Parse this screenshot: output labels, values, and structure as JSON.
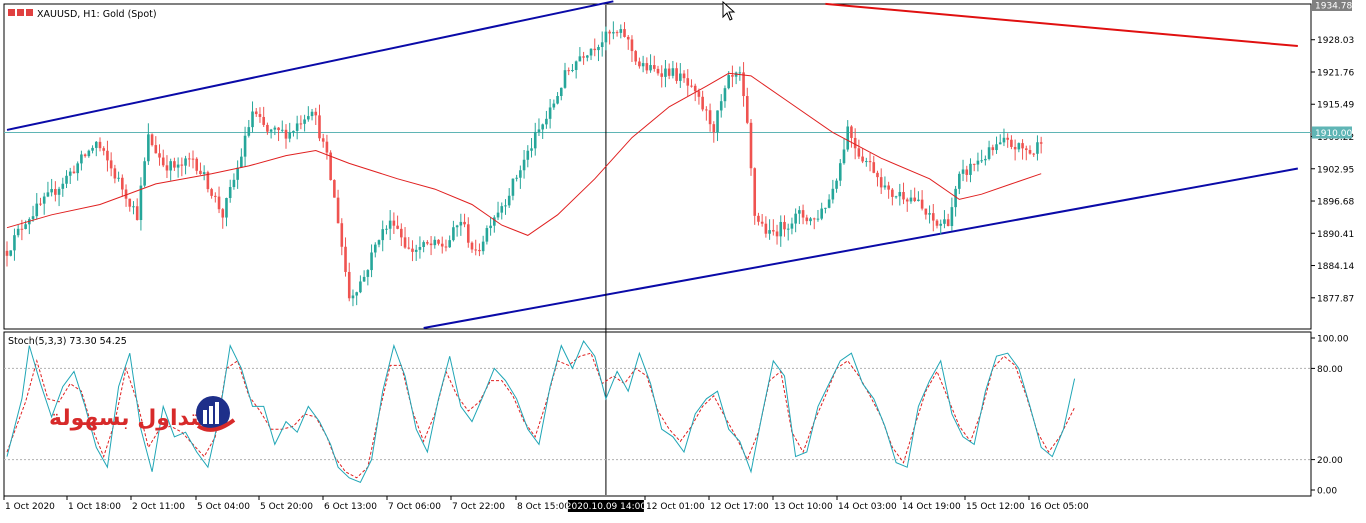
{
  "header": {
    "symbol_title": "XAUUSD, H1:  Gold (Spot)",
    "stoch_title": "Stoch(5,3,3) 73.30 54.25"
  },
  "logo": {
    "text": "التداول بسهولة"
  },
  "colors": {
    "bull": "#26a69a",
    "bear": "#ef5350",
    "ma": "#e02020",
    "channel": "#0a0aa8",
    "resistance": "#e01010",
    "hline": "#5fb5b5",
    "stoch_main": "#20a6b6",
    "stoch_signal": "#e02020",
    "crosshair": "#000000"
  },
  "chart_data": [
    {
      "type": "candlestick",
      "symbol": "XAUUSD",
      "timeframe": "H1",
      "ylim": [
        1872.0,
        1934.78
      ],
      "y_ticks": [
        "1934.78",
        "1928.03",
        "1921.76",
        "1915.49",
        "1909.22",
        "1902.95",
        "1896.68",
        "1890.41",
        "1884.14",
        "1877.87"
      ],
      "price_tag": "1910.00",
      "x_ticks": [
        "1 Oct 2020",
        "1 Oct 18:00",
        "2 Oct 11:00",
        "5 Oct 04:00",
        "5 Oct 20:00",
        "6 Oct 13:00",
        "7 Oct 06:00",
        "7 Oct 22:00",
        "8 Oct 15:00",
        "12 Oct 01:00",
        "12 Oct 17:00",
        "13 Oct 10:00",
        "14 Oct 03:00",
        "14 Oct 19:00",
        "15 Oct 12:00",
        "16 Oct 05:00"
      ],
      "crosshair_label": "2020.10.09 14:00",
      "anchors": [
        [
          0,
          1887
        ],
        [
          5,
          1893
        ],
        [
          12,
          1898
        ],
        [
          18,
          1903
        ],
        [
          24,
          1908
        ],
        [
          28,
          1903
        ],
        [
          32,
          1898
        ],
        [
          35,
          1894
        ],
        [
          38,
          1909
        ],
        [
          42,
          1904
        ],
        [
          46,
          1903
        ],
        [
          50,
          1905
        ],
        [
          54,
          1900
        ],
        [
          58,
          1894
        ],
        [
          62,
          1903
        ],
        [
          66,
          1914
        ],
        [
          70,
          1910
        ],
        [
          76,
          1910
        ],
        [
          82,
          1915
        ],
        [
          86,
          1905
        ],
        [
          89,
          1893
        ],
        [
          92,
          1878
        ],
        [
          96,
          1882
        ],
        [
          100,
          1890
        ],
        [
          104,
          1893
        ],
        [
          108,
          1887
        ],
        [
          113,
          1888
        ],
        [
          118,
          1888
        ],
        [
          122,
          1893
        ],
        [
          126,
          1886
        ],
        [
          130,
          1893
        ],
        [
          134,
          1897
        ],
        [
          138,
          1903
        ],
        [
          142,
          1909
        ],
        [
          146,
          1914
        ],
        [
          150,
          1921
        ],
        [
          154,
          1925
        ],
        [
          158,
          1927
        ],
        [
          162,
          1929
        ],
        [
          166,
          1929
        ],
        [
          170,
          1923
        ],
        [
          174,
          1922
        ],
        [
          178,
          1922
        ],
        [
          182,
          1920
        ],
        [
          186,
          1916
        ],
        [
          190,
          1911
        ],
        [
          194,
          1920
        ],
        [
          197,
          1921
        ],
        [
          199,
          1911
        ],
        [
          201,
          1894
        ],
        [
          205,
          1890
        ],
        [
          209,
          1892
        ],
        [
          213,
          1894
        ],
        [
          217,
          1893
        ],
        [
          221,
          1897
        ],
        [
          224,
          1904
        ],
        [
          226,
          1911
        ],
        [
          229,
          1906
        ],
        [
          233,
          1903
        ],
        [
          237,
          1898
        ],
        [
          241,
          1898
        ],
        [
          244,
          1897
        ],
        [
          247,
          1894
        ],
        [
          250,
          1892
        ],
        [
          253,
          1893
        ],
        [
          256,
          1901
        ],
        [
          260,
          1904
        ],
        [
          264,
          1906
        ],
        [
          268,
          1908
        ],
        [
          272,
          1907
        ],
        [
          276,
          1906
        ],
        [
          278,
          1909
        ]
      ],
      "ma_line": [
        [
          0,
          1891.5
        ],
        [
          12,
          1894
        ],
        [
          25,
          1896
        ],
        [
          40,
          1900
        ],
        [
          55,
          1902
        ],
        [
          65,
          1903.5
        ],
        [
          75,
          1905.5
        ],
        [
          83,
          1906.5
        ],
        [
          92,
          1904
        ],
        [
          105,
          1901
        ],
        [
          115,
          1899
        ],
        [
          125,
          1896
        ],
        [
          133,
          1892
        ],
        [
          140,
          1890
        ],
        [
          148,
          1894
        ],
        [
          158,
          1901
        ],
        [
          168,
          1909
        ],
        [
          178,
          1915
        ],
        [
          188,
          1919
        ],
        [
          194,
          1921.5
        ],
        [
          200,
          1921
        ],
        [
          210,
          1916
        ],
        [
          222,
          1910
        ],
        [
          235,
          1905
        ],
        [
          248,
          1901
        ],
        [
          256,
          1897
        ],
        [
          262,
          1898
        ],
        [
          270,
          1900
        ],
        [
          278,
          1902
        ]
      ],
      "trendlines": [
        {
          "name": "upper-channel",
          "from": [
            0,
            1910.5
          ],
          "to": [
            163,
            1935.5
          ]
        },
        {
          "name": "lower-channel",
          "from": [
            112,
            1872.0
          ],
          "to": [
            347,
            1903.0
          ]
        },
        {
          "name": "resistance",
          "from": [
            220,
            1935.0
          ],
          "to": [
            347,
            1926.8
          ]
        }
      ],
      "hline_value": 1910.0
    },
    {
      "type": "line",
      "indicator": "Stochastic",
      "params": "5,3,3",
      "ylim": [
        0,
        100
      ],
      "y_ticks": [
        "100.00",
        "80.00",
        "20.00",
        "0.00"
      ],
      "levels": [
        80,
        20
      ],
      "main_anchors": [
        [
          0,
          22
        ],
        [
          4,
          60
        ],
        [
          6,
          95
        ],
        [
          9,
          70
        ],
        [
          12,
          48
        ],
        [
          15,
          68
        ],
        [
          18,
          78
        ],
        [
          21,
          55
        ],
        [
          24,
          28
        ],
        [
          27,
          15
        ],
        [
          30,
          68
        ],
        [
          33,
          90
        ],
        [
          36,
          40
        ],
        [
          39,
          12
        ],
        [
          42,
          55
        ],
        [
          45,
          35
        ],
        [
          48,
          38
        ],
        [
          51,
          25
        ],
        [
          54,
          15
        ],
        [
          57,
          48
        ],
        [
          60,
          95
        ],
        [
          63,
          80
        ],
        [
          66,
          55
        ],
        [
          69,
          55
        ],
        [
          72,
          30
        ],
        [
          75,
          45
        ],
        [
          78,
          38
        ],
        [
          81,
          55
        ],
        [
          84,
          45
        ],
        [
          87,
          30
        ],
        [
          89,
          15
        ],
        [
          92,
          8
        ],
        [
          95,
          5
        ],
        [
          98,
          20
        ],
        [
          101,
          65
        ],
        [
          104,
          95
        ],
        [
          107,
          75
        ],
        [
          110,
          40
        ],
        [
          113,
          25
        ],
        [
          116,
          60
        ],
        [
          119,
          88
        ],
        [
          122,
          55
        ],
        [
          125,
          45
        ],
        [
          128,
          62
        ],
        [
          131,
          80
        ],
        [
          134,
          72
        ],
        [
          137,
          60
        ],
        [
          140,
          40
        ],
        [
          143,
          30
        ],
        [
          146,
          68
        ],
        [
          149,
          95
        ],
        [
          152,
          80
        ],
        [
          155,
          98
        ],
        [
          158,
          88
        ],
        [
          161,
          60
        ],
        [
          164,
          78
        ],
        [
          167,
          65
        ],
        [
          170,
          90
        ],
        [
          173,
          70
        ],
        [
          176,
          40
        ],
        [
          179,
          35
        ],
        [
          182,
          25
        ],
        [
          185,
          50
        ],
        [
          188,
          60
        ],
        [
          191,
          65
        ],
        [
          194,
          40
        ],
        [
          197,
          32
        ],
        [
          200,
          12
        ],
        [
          203,
          50
        ],
        [
          206,
          85
        ],
        [
          209,
          75
        ],
        [
          212,
          22
        ],
        [
          215,
          25
        ],
        [
          218,
          55
        ],
        [
          221,
          70
        ],
        [
          224,
          85
        ],
        [
          227,
          90
        ],
        [
          230,
          70
        ],
        [
          233,
          60
        ],
        [
          236,
          42
        ],
        [
          239,
          18
        ],
        [
          242,
          15
        ],
        [
          245,
          55
        ],
        [
          248,
          72
        ],
        [
          251,
          85
        ],
        [
          254,
          50
        ],
        [
          257,
          35
        ],
        [
          260,
          30
        ],
        [
          263,
          65
        ],
        [
          266,
          88
        ],
        [
          269,
          90
        ],
        [
          272,
          80
        ],
        [
          275,
          55
        ],
        [
          278,
          28
        ],
        [
          281,
          22
        ],
        [
          284,
          40
        ],
        [
          287,
          73.3
        ]
      ],
      "signal_anchors": [
        [
          0,
          25
        ],
        [
          5,
          58
        ],
        [
          8,
          85
        ],
        [
          11,
          60
        ],
        [
          14,
          58
        ],
        [
          17,
          70
        ],
        [
          20,
          65
        ],
        [
          23,
          40
        ],
        [
          26,
          22
        ],
        [
          29,
          45
        ],
        [
          32,
          80
        ],
        [
          35,
          58
        ],
        [
          38,
          28
        ],
        [
          41,
          40
        ],
        [
          44,
          42
        ],
        [
          47,
          38
        ],
        [
          50,
          30
        ],
        [
          53,
          22
        ],
        [
          56,
          35
        ],
        [
          59,
          80
        ],
        [
          62,
          85
        ],
        [
          65,
          62
        ],
        [
          68,
          52
        ],
        [
          71,
          40
        ],
        [
          74,
          40
        ],
        [
          77,
          42
        ],
        [
          80,
          50
        ],
        [
          83,
          48
        ],
        [
          86,
          35
        ],
        [
          88,
          22
        ],
        [
          91,
          12
        ],
        [
          94,
          8
        ],
        [
          97,
          15
        ],
        [
          100,
          50
        ],
        [
          103,
          82
        ],
        [
          106,
          82
        ],
        [
          109,
          52
        ],
        [
          112,
          32
        ],
        [
          115,
          50
        ],
        [
          118,
          78
        ],
        [
          121,
          62
        ],
        [
          124,
          52
        ],
        [
          127,
          58
        ],
        [
          130,
          72
        ],
        [
          133,
          72
        ],
        [
          136,
          62
        ],
        [
          139,
          45
        ],
        [
          142,
          35
        ],
        [
          145,
          58
        ],
        [
          148,
          85
        ],
        [
          151,
          82
        ],
        [
          154,
          88
        ],
        [
          157,
          90
        ],
        [
          160,
          70
        ],
        [
          163,
          75
        ],
        [
          166,
          70
        ],
        [
          169,
          80
        ],
        [
          172,
          75
        ],
        [
          175,
          52
        ],
        [
          178,
          40
        ],
        [
          181,
          32
        ],
        [
          184,
          42
        ],
        [
          187,
          55
        ],
        [
          190,
          62
        ],
        [
          193,
          48
        ],
        [
          196,
          35
        ],
        [
          199,
          20
        ],
        [
          202,
          38
        ],
        [
          205,
          72
        ],
        [
          208,
          78
        ],
        [
          211,
          38
        ],
        [
          214,
          25
        ],
        [
          217,
          45
        ],
        [
          220,
          62
        ],
        [
          223,
          80
        ],
        [
          226,
          85
        ],
        [
          229,
          75
        ],
        [
          232,
          62
        ],
        [
          235,
          48
        ],
        [
          238,
          28
        ],
        [
          241,
          18
        ],
        [
          244,
          42
        ],
        [
          247,
          65
        ],
        [
          250,
          78
        ],
        [
          253,
          60
        ],
        [
          256,
          42
        ],
        [
          259,
          32
        ],
        [
          262,
          52
        ],
        [
          265,
          80
        ],
        [
          268,
          88
        ],
        [
          271,
          82
        ],
        [
          274,
          62
        ],
        [
          277,
          38
        ],
        [
          280,
          25
        ],
        [
          283,
          35
        ],
        [
          287,
          54.25
        ]
      ]
    }
  ]
}
